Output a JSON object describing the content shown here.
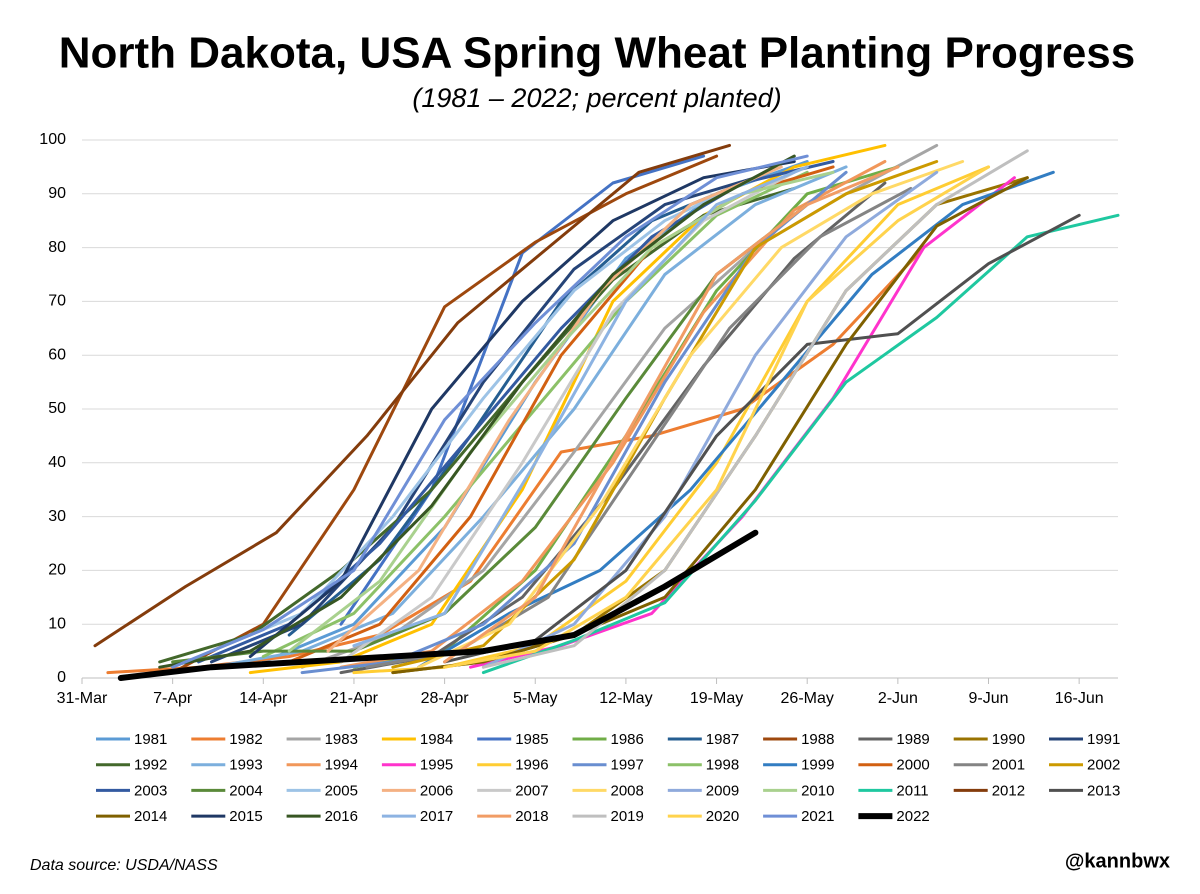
{
  "chart_data": {
    "type": "line",
    "title": "North Dakota, USA Spring Wheat Planting Progress",
    "subtitle": "(1981 – 2022; percent planted)",
    "source": "Data source: USDA/NASS",
    "credit": "@kannbwx",
    "xlim": [
      0,
      80
    ],
    "ylim": [
      0,
      100
    ],
    "xticks": [
      {
        "value": 0,
        "label": "31-Mar"
      },
      {
        "value": 7,
        "label": "7-Apr"
      },
      {
        "value": 14,
        "label": "14-Apr"
      },
      {
        "value": 21,
        "label": "21-Apr"
      },
      {
        "value": 28,
        "label": "28-Apr"
      },
      {
        "value": 35,
        "label": "5-May"
      },
      {
        "value": 42,
        "label": "12-May"
      },
      {
        "value": 49,
        "label": "19-May"
      },
      {
        "value": 56,
        "label": "26-May"
      },
      {
        "value": 63,
        "label": "2-Jun"
      },
      {
        "value": 70,
        "label": "9-Jun"
      },
      {
        "value": 77,
        "label": "16-Jun"
      }
    ],
    "yticks": [
      0,
      10,
      20,
      30,
      40,
      50,
      60,
      70,
      80,
      90,
      100
    ],
    "grid": true,
    "series": [
      {
        "name": "1981",
        "color": "#5b9bd5",
        "x": [
          14,
          21,
          28,
          35,
          42,
          49,
          56
        ],
        "values": [
          3,
          10,
          28,
          55,
          78,
          90,
          96
        ]
      },
      {
        "name": "1982",
        "color": "#ed7d31",
        "x": [
          2,
          9,
          16,
          23,
          30,
          37,
          44,
          51,
          58,
          65
        ],
        "values": [
          1,
          2,
          4,
          8,
          18,
          42,
          45,
          50,
          62,
          80
        ]
      },
      {
        "name": "1983",
        "color": "#a5a5a5",
        "x": [
          17,
          24,
          31,
          38,
          45,
          52,
          59,
          66
        ],
        "values": [
          2,
          8,
          20,
          42,
          65,
          80,
          90,
          99
        ]
      },
      {
        "name": "1984",
        "color": "#ffc000",
        "x": [
          13,
          20,
          27,
          34,
          41,
          48,
          55,
          62
        ],
        "values": [
          1,
          3,
          10,
          35,
          70,
          86,
          95,
          99
        ]
      },
      {
        "name": "1985",
        "color": "#4472c4",
        "x": [
          20,
          27,
          34,
          41,
          48
        ],
        "values": [
          10,
          35,
          79,
          92,
          97
        ]
      },
      {
        "name": "1986",
        "color": "#70ad47",
        "x": [
          21,
          28,
          35,
          42,
          49,
          56,
          63
        ],
        "values": [
          2,
          5,
          20,
          45,
          72,
          90,
          95
        ]
      },
      {
        "name": "1987",
        "color": "#255e91",
        "x": [
          16,
          23,
          30,
          37,
          44,
          51
        ],
        "values": [
          8,
          22,
          45,
          70,
          85,
          92
        ]
      },
      {
        "name": "1988",
        "color": "#9e480e",
        "x": [
          7,
          14,
          21,
          28,
          35,
          42,
          49
        ],
        "values": [
          1,
          10,
          35,
          69,
          81,
          90,
          97
        ]
      },
      {
        "name": "1989",
        "color": "#636363",
        "x": [
          20,
          27,
          34,
          41,
          48,
          55,
          62
        ],
        "values": [
          1,
          4,
          15,
          35,
          58,
          78,
          92
        ]
      },
      {
        "name": "1990",
        "color": "#997300",
        "x": [
          24,
          31,
          38,
          45,
          52,
          59,
          66,
          73
        ],
        "values": [
          1,
          3,
          8,
          20,
          45,
          72,
          88,
          93
        ]
      },
      {
        "name": "1991",
        "color": "#264478",
        "x": [
          10,
          17,
          24,
          31,
          38,
          45,
          52
        ],
        "values": [
          3,
          10,
          28,
          55,
          76,
          88,
          93
        ]
      },
      {
        "name": "1992",
        "color": "#43682b",
        "x": [
          6,
          13,
          20,
          27,
          34,
          41,
          48,
          55
        ],
        "values": [
          3,
          8,
          20,
          35,
          55,
          74,
          86,
          91
        ]
      },
      {
        "name": "1993",
        "color": "#7cafdd",
        "x": [
          10,
          17,
          24,
          31,
          38,
          45,
          52,
          59
        ],
        "values": [
          2,
          5,
          12,
          30,
          50,
          75,
          88,
          95
        ]
      },
      {
        "name": "1994",
        "color": "#f1975a",
        "x": [
          20,
          27,
          34,
          41,
          48,
          55,
          62
        ],
        "values": [
          2,
          5,
          18,
          40,
          68,
          87,
          96
        ]
      },
      {
        "name": "1995",
        "color": "#ff33cc",
        "x": [
          30,
          37,
          44,
          51,
          58,
          65,
          72
        ],
        "values": [
          2,
          6,
          12,
          30,
          52,
          80,
          93
        ]
      },
      {
        "name": "1996",
        "color": "#ffcd33",
        "x": [
          21,
          28,
          35,
          42,
          49,
          56,
          63,
          70
        ],
        "values": [
          1,
          2,
          6,
          18,
          40,
          70,
          88,
          95
        ]
      },
      {
        "name": "1997",
        "color": "#698ed0",
        "x": [
          17,
          24,
          31,
          38,
          45,
          52,
          59
        ],
        "values": [
          1,
          3,
          10,
          25,
          55,
          80,
          94
        ]
      },
      {
        "name": "1998",
        "color": "#8cc168",
        "x": [
          14,
          21,
          28,
          35,
          42,
          49,
          56
        ],
        "values": [
          4,
          12,
          30,
          50,
          70,
          86,
          94
        ]
      },
      {
        "name": "1999",
        "color": "#327dc2",
        "x": [
          26,
          33,
          40,
          47,
          54,
          61,
          68,
          75
        ],
        "values": [
          2,
          12,
          20,
          35,
          55,
          75,
          88,
          94
        ]
      },
      {
        "name": "2000",
        "color": "#d26012",
        "x": [
          16,
          23,
          30,
          37,
          44,
          51,
          58
        ],
        "values": [
          3,
          10,
          30,
          60,
          80,
          90,
          95
        ]
      },
      {
        "name": "2001",
        "color": "#848484",
        "x": [
          22,
          29,
          36,
          43,
          50,
          57,
          64
        ],
        "values": [
          2,
          5,
          15,
          40,
          65,
          82,
          91
        ]
      },
      {
        "name": "2002",
        "color": "#cc9a00",
        "x": [
          24,
          31,
          38,
          45,
          52,
          59,
          66
        ],
        "values": [
          2,
          6,
          22,
          52,
          80,
          90,
          96
        ]
      },
      {
        "name": "2003",
        "color": "#335aa1",
        "x": [
          9,
          16,
          23,
          30,
          37,
          44,
          51,
          58
        ],
        "values": [
          3,
          10,
          25,
          45,
          65,
          82,
          92,
          96
        ]
      },
      {
        "name": "2004",
        "color": "#5a8a39",
        "x": [
          7,
          14,
          21,
          28,
          35,
          42,
          49,
          56
        ],
        "values": [
          3,
          5,
          5,
          12,
          28,
          52,
          75,
          88
        ]
      },
      {
        "name": "2005",
        "color": "#9dc3e6",
        "x": [
          10,
          17,
          24,
          31,
          38,
          45,
          52
        ],
        "values": [
          5,
          12,
          30,
          52,
          72,
          85,
          93
        ]
      },
      {
        "name": "2006",
        "color": "#f4b183",
        "x": [
          19,
          26,
          33,
          40,
          47,
          54
        ],
        "values": [
          5,
          20,
          48,
          72,
          88,
          95
        ]
      },
      {
        "name": "2007",
        "color": "#c9c9c9",
        "x": [
          20,
          27,
          34,
          41,
          48,
          55
        ],
        "values": [
          3,
          15,
          40,
          68,
          85,
          94
        ]
      },
      {
        "name": "2008",
        "color": "#ffd966",
        "x": [
          26,
          33,
          40,
          47,
          54,
          61,
          68
        ],
        "values": [
          2,
          10,
          32,
          60,
          80,
          90,
          96
        ]
      },
      {
        "name": "2009",
        "color": "#8faadc",
        "x": [
          31,
          38,
          45,
          52,
          59,
          66
        ],
        "values": [
          2,
          10,
          30,
          60,
          82,
          94
        ]
      },
      {
        "name": "2010",
        "color": "#a9d18e",
        "x": [
          16,
          23,
          30,
          37,
          44,
          51,
          58
        ],
        "values": [
          5,
          18,
          42,
          62,
          80,
          90,
          94
        ]
      },
      {
        "name": "2011",
        "color": "#1fc8a0",
        "x": [
          31,
          38,
          45,
          52,
          59,
          66,
          73,
          80
        ],
        "values": [
          1,
          7,
          14,
          33,
          55,
          67,
          82,
          86
        ]
      },
      {
        "name": "2012",
        "color": "#843c0c",
        "x": [
          1,
          8,
          15,
          22,
          29,
          36,
          43,
          50
        ],
        "values": [
          6,
          17,
          27,
          45,
          66,
          80,
          94,
          99
        ]
      },
      {
        "name": "2013",
        "color": "#505050",
        "x": [
          28,
          35,
          42,
          49,
          56,
          63,
          70,
          77
        ],
        "values": [
          3,
          7,
          20,
          45,
          62,
          64,
          77,
          86
        ]
      },
      {
        "name": "2014",
        "color": "#7f6000",
        "x": [
          24,
          31,
          38,
          45,
          52,
          59,
          66,
          73
        ],
        "values": [
          1,
          3,
          8,
          15,
          35,
          62,
          84,
          93
        ]
      },
      {
        "name": "2015",
        "color": "#1f3864",
        "x": [
          13,
          20,
          27,
          34,
          41,
          48,
          55
        ],
        "values": [
          4,
          18,
          50,
          70,
          85,
          93,
          96
        ]
      },
      {
        "name": "2016",
        "color": "#375623",
        "x": [
          6,
          13,
          20,
          27,
          34,
          41,
          48,
          55
        ],
        "values": [
          2,
          5,
          15,
          32,
          55,
          75,
          88,
          97
        ]
      },
      {
        "name": "2017",
        "color": "#8db3e2",
        "x": [
          21,
          28,
          35,
          42,
          49,
          56
        ],
        "values": [
          6,
          12,
          40,
          70,
          88,
          95
        ]
      },
      {
        "name": "2018",
        "color": "#f19c65",
        "x": [
          28,
          35,
          42,
          49,
          56,
          63
        ],
        "values": [
          3,
          15,
          45,
          75,
          88,
          95
        ]
      },
      {
        "name": "2019",
        "color": "#bfbfbf",
        "x": [
          31,
          38,
          45,
          52,
          59,
          66,
          73
        ],
        "values": [
          2,
          6,
          20,
          45,
          72,
          88,
          98
        ]
      },
      {
        "name": "2020",
        "color": "#ffd34d",
        "x": [
          28,
          35,
          42,
          49,
          56,
          63,
          70
        ],
        "values": [
          2,
          5,
          15,
          35,
          70,
          85,
          95
        ]
      },
      {
        "name": "2021",
        "color": "#6f8fd6",
        "x": [
          7,
          14,
          21,
          28,
          35,
          42,
          49,
          56
        ],
        "values": [
          2,
          9,
          20,
          48,
          66,
          82,
          93,
          97
        ]
      },
      {
        "name": "2022",
        "color": "#000000",
        "x": [
          3,
          10,
          17,
          24,
          31,
          38,
          45,
          52
        ],
        "values": [
          0,
          2,
          3,
          4,
          5,
          8,
          17,
          27
        ]
      }
    ]
  }
}
